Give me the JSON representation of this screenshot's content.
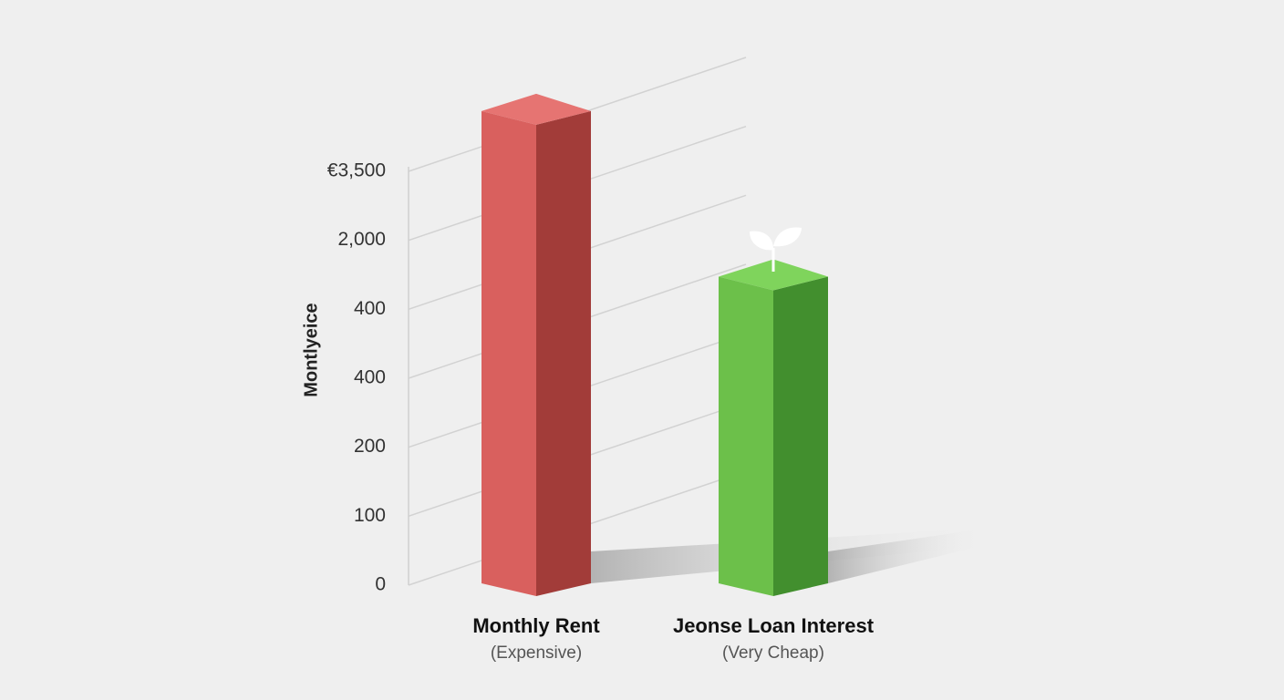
{
  "chart_data": {
    "type": "bar3d",
    "y_label": "Montlyeice",
    "categories": [
      "Monthly Rent",
      "Jeonse Loan Interest"
    ],
    "category_notes": [
      "(Expensive)",
      "(Very Cheap)"
    ],
    "values": [
      6.9,
      4.5
    ],
    "colors": [
      "#d9605e",
      "#6cc04a"
    ],
    "side_colors": [
      "#a23c39",
      "#428f2e"
    ],
    "top_colors": [
      "#e67472",
      "#7fd45c"
    ],
    "ylim": [
      0,
      6
    ],
    "yticks": [
      {
        "value": 0,
        "label": "0"
      },
      {
        "value": 1,
        "label": "100"
      },
      {
        "value": 2,
        "label": "200"
      },
      {
        "value": 3,
        "label": "400"
      },
      {
        "value": 4,
        "label": "400"
      },
      {
        "value": 5,
        "label": "2,000"
      },
      {
        "value": 6,
        "label": "€3,500"
      }
    ],
    "grid": true
  }
}
